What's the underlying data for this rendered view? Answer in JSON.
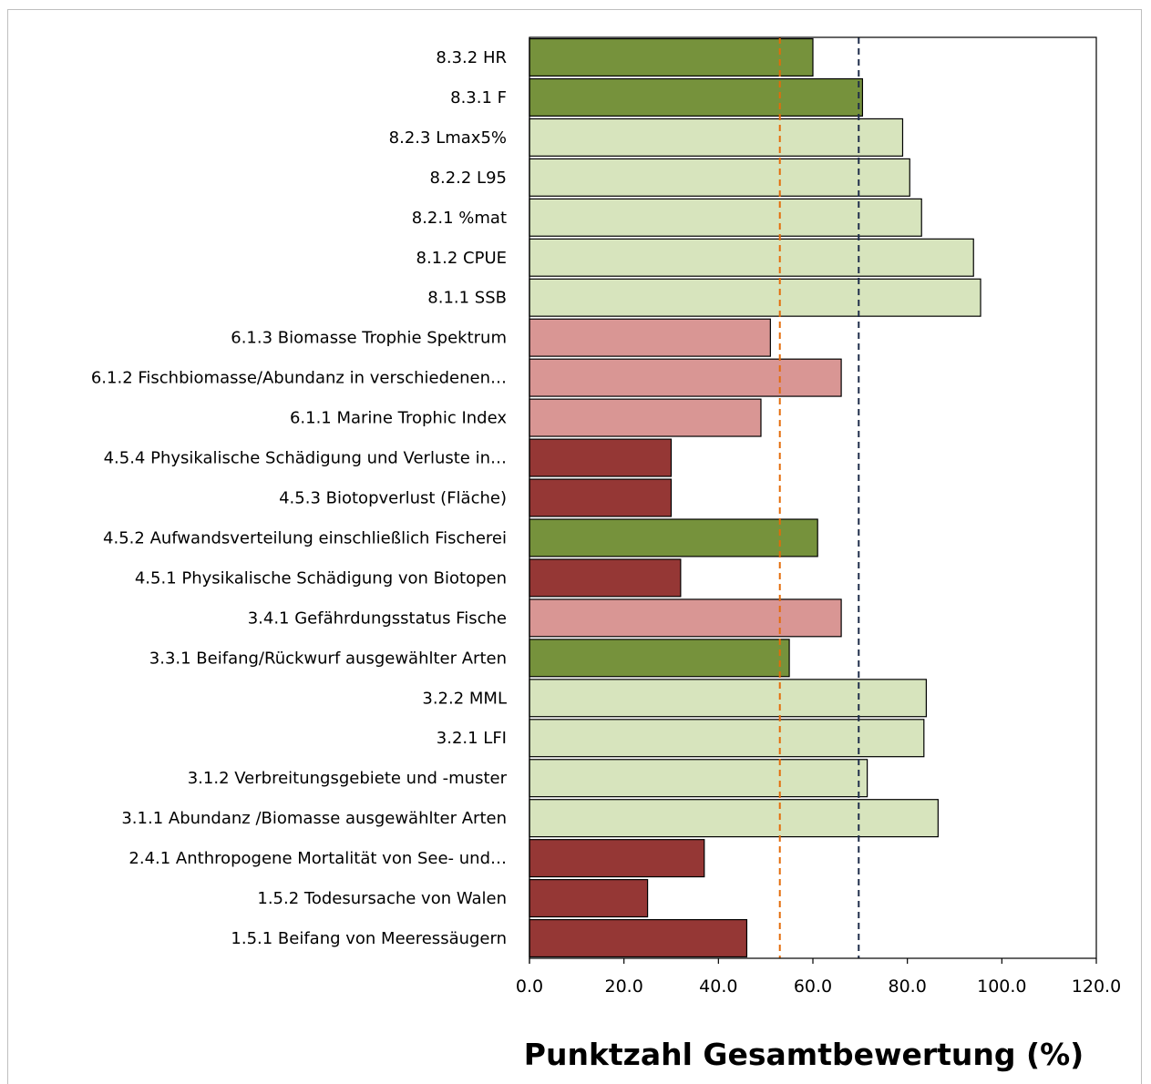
{
  "chart_data": {
    "type": "bar",
    "orientation": "horizontal",
    "title": "",
    "xlabel": "Punktzahl Gesamtbewertung (%)",
    "ylabel": "",
    "xlim": [
      0,
      120
    ],
    "x_ticks": [
      "0.0",
      "20.0",
      "40.0",
      "60.0",
      "80.0",
      "100.0",
      "120.0"
    ],
    "grid": false,
    "legend": "none",
    "reference_lines": [
      {
        "value": 53,
        "color": "#e46c0a",
        "style": "dashed"
      },
      {
        "value": 69.7,
        "color": "#1f2d4a",
        "style": "dashed"
      }
    ],
    "colors": {
      "green": "#76923c",
      "light_green": "#d7e4bd",
      "pink": "#d99694",
      "dark_red": "#953735"
    },
    "categories": [
      "8.3.2 HR",
      "8.3.1 F",
      "8.2.3 Lmax5%",
      "8.2.2 L95",
      "8.2.1 %mat",
      "8.1.2 CPUE",
      "8.1.1 SSB",
      "6.1.3 Biomasse Trophie Spektrum",
      "6.1.2 Fischbiomasse/Abundanz in verschiedenen…",
      "6.1.1  Marine Trophic Index",
      "4.5.4 Physikalische Schädigung und Verluste in…",
      "4.5.3 Biotopverlust (Fläche)",
      "4.5.2 Aufwandsverteilung einschließlich Fischerei",
      "4.5.1 Physikalische Schädigung von Biotopen",
      "3.4.1 Gefährdungsstatus Fische",
      "3.3.1 Beifang/Rückwurf ausgewählter Arten",
      "3.2.2 MML",
      "3.2.1  LFI",
      "3.1.2 Verbreitungsgebiete und -muster",
      "3.1.1  Abundanz /Biomasse ausgewählter Arten",
      "2.4.1 Anthropogene Mortalität von See- und…",
      "1.5.2 Todesursache von Walen",
      "1.5.1 Beifang von Meeressäugern"
    ],
    "values": [
      60,
      70.5,
      79,
      80.5,
      83,
      94,
      95.5,
      51,
      66,
      49,
      30,
      30,
      61,
      32,
      66,
      55,
      84,
      83.5,
      71.5,
      86.5,
      37,
      25,
      46
    ],
    "bar_colors": [
      "green",
      "green",
      "light_green",
      "light_green",
      "light_green",
      "light_green",
      "light_green",
      "pink",
      "pink",
      "pink",
      "dark_red",
      "dark_red",
      "green",
      "dark_red",
      "pink",
      "green",
      "light_green",
      "light_green",
      "light_green",
      "light_green",
      "dark_red",
      "dark_red",
      "dark_red"
    ]
  }
}
